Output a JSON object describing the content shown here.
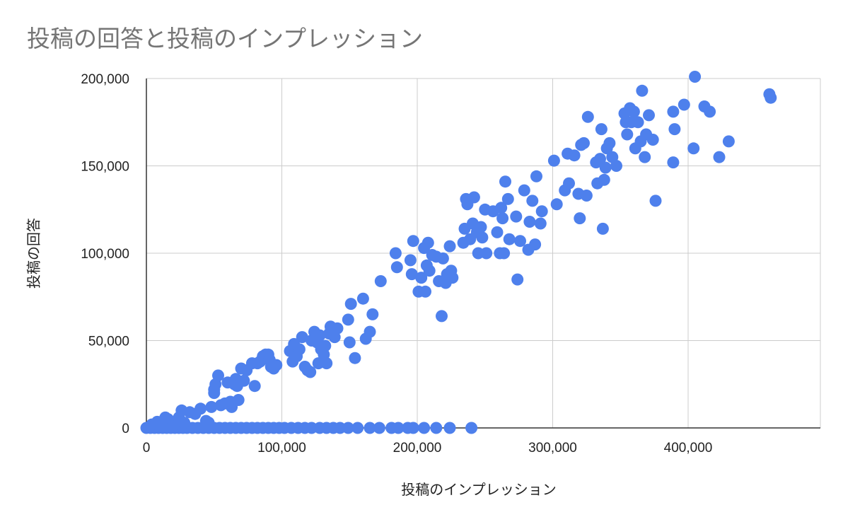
{
  "chart_data": {
    "type": "scatter",
    "title": "投稿の回答と投稿のインプレッション",
    "xlabel": "投稿のインプレッション",
    "ylabel": "投稿の回答",
    "xlim": [
      0,
      500000
    ],
    "ylim": [
      0,
      200000
    ],
    "x_ticks": [
      "0",
      "100,000",
      "200,000",
      "300,000",
      "400,000"
    ],
    "y_ticks": [
      "0",
      "50,000",
      "100,000",
      "150,000",
      "200,000"
    ],
    "grid": true,
    "legend": "none",
    "color": "#4e80ec",
    "points": [
      [
        0,
        0
      ],
      [
        3000,
        0
      ],
      [
        6000,
        0
      ],
      [
        9000,
        0
      ],
      [
        12000,
        0
      ],
      [
        15000,
        0
      ],
      [
        18000,
        0
      ],
      [
        21000,
        0
      ],
      [
        24000,
        0
      ],
      [
        27000,
        0
      ],
      [
        30000,
        0
      ],
      [
        34000,
        0
      ],
      [
        38000,
        0
      ],
      [
        42000,
        0
      ],
      [
        46000,
        0
      ],
      [
        50000,
        0
      ],
      [
        54000,
        0
      ],
      [
        58000,
        0
      ],
      [
        62000,
        0
      ],
      [
        66000,
        0
      ],
      [
        70000,
        0
      ],
      [
        74000,
        0
      ],
      [
        78000,
        0
      ],
      [
        82000,
        0
      ],
      [
        86000,
        0
      ],
      [
        90000,
        0
      ],
      [
        94000,
        0
      ],
      [
        98000,
        0
      ],
      [
        102000,
        0
      ],
      [
        107000,
        0
      ],
      [
        112000,
        0
      ],
      [
        117000,
        0
      ],
      [
        122000,
        0
      ],
      [
        128000,
        0
      ],
      [
        133000,
        0
      ],
      [
        138000,
        0
      ],
      [
        143000,
        0
      ],
      [
        149000,
        0
      ],
      [
        156000,
        0
      ],
      [
        165000,
        0
      ],
      [
        172000,
        0
      ],
      [
        181000,
        0
      ],
      [
        186000,
        0
      ],
      [
        193000,
        0
      ],
      [
        197000,
        0
      ],
      [
        205000,
        0
      ],
      [
        214000,
        0
      ],
      [
        224000,
        0
      ],
      [
        240000,
        0
      ],
      [
        4000,
        2000
      ],
      [
        8000,
        3500
      ],
      [
        12000,
        1500
      ],
      [
        16000,
        5000
      ],
      [
        20000,
        2000
      ],
      [
        24000,
        6000
      ],
      [
        28000,
        3000
      ],
      [
        32000,
        9000
      ],
      [
        36000,
        8000
      ],
      [
        40000,
        11000
      ],
      [
        14000,
        6000
      ],
      [
        26000,
        10000
      ],
      [
        44000,
        4000
      ],
      [
        46000,
        3000
      ],
      [
        48000,
        12000
      ],
      [
        50000,
        22000
      ],
      [
        50000,
        20000
      ],
      [
        51000,
        25000
      ],
      [
        53000,
        30000
      ],
      [
        55000,
        13000
      ],
      [
        58000,
        14000
      ],
      [
        60000,
        26000
      ],
      [
        62000,
        15000
      ],
      [
        63000,
        12000
      ],
      [
        65000,
        25000
      ],
      [
        66000,
        28000
      ],
      [
        67000,
        24000
      ],
      [
        68000,
        16000
      ],
      [
        70000,
        34000
      ],
      [
        72000,
        27000
      ],
      [
        74000,
        33000
      ],
      [
        78000,
        37000
      ],
      [
        80000,
        24000
      ],
      [
        82000,
        37000
      ],
      [
        84000,
        38000
      ],
      [
        86000,
        41000
      ],
      [
        88000,
        42000
      ],
      [
        90000,
        42000
      ],
      [
        91000,
        39000
      ],
      [
        92000,
        35000
      ],
      [
        94000,
        34000
      ],
      [
        96000,
        36000
      ],
      [
        106000,
        44000
      ],
      [
        108000,
        38000
      ],
      [
        109000,
        48000
      ],
      [
        111000,
        41000
      ],
      [
        113000,
        45000
      ],
      [
        115000,
        52000
      ],
      [
        117000,
        35000
      ],
      [
        119000,
        33000
      ],
      [
        121000,
        32000
      ],
      [
        122000,
        50000
      ],
      [
        124000,
        55000
      ],
      [
        126000,
        49000
      ],
      [
        127000,
        37000
      ],
      [
        128000,
        53000
      ],
      [
        129000,
        45000
      ],
      [
        131000,
        42000
      ],
      [
        132000,
        47000
      ],
      [
        133000,
        37000
      ],
      [
        135000,
        54000
      ],
      [
        136000,
        58000
      ],
      [
        139000,
        52000
      ],
      [
        141000,
        57000
      ],
      [
        149000,
        62000
      ],
      [
        150000,
        49000
      ],
      [
        151000,
        71000
      ],
      [
        154000,
        40000
      ],
      [
        160000,
        74000
      ],
      [
        162000,
        51000
      ],
      [
        165000,
        55000
      ],
      [
        167000,
        65000
      ],
      [
        173000,
        84000
      ],
      [
        184000,
        100000
      ],
      [
        185000,
        92000
      ],
      [
        195000,
        96000
      ],
      [
        196000,
        88000
      ],
      [
        197000,
        107000
      ],
      [
        201000,
        78000
      ],
      [
        203000,
        86000
      ],
      [
        205000,
        103000
      ],
      [
        206000,
        78000
      ],
      [
        207000,
        93000
      ],
      [
        208000,
        106000
      ],
      [
        209000,
        90000
      ],
      [
        211000,
        99000
      ],
      [
        214000,
        98000
      ],
      [
        216000,
        84000
      ],
      [
        218000,
        64000
      ],
      [
        219000,
        97000
      ],
      [
        221000,
        83000
      ],
      [
        222000,
        88000
      ],
      [
        224000,
        104000
      ],
      [
        225000,
        90000
      ],
      [
        226000,
        86000
      ],
      [
        234000,
        106000
      ],
      [
        235000,
        114000
      ],
      [
        236000,
        131000
      ],
      [
        237000,
        128000
      ],
      [
        239000,
        108000
      ],
      [
        241000,
        117000
      ],
      [
        242000,
        132000
      ],
      [
        244000,
        112000
      ],
      [
        245000,
        100000
      ],
      [
        247000,
        115000
      ],
      [
        248000,
        109000
      ],
      [
        250000,
        125000
      ],
      [
        251000,
        100000
      ],
      [
        256000,
        124000
      ],
      [
        259000,
        112000
      ],
      [
        261000,
        100000
      ],
      [
        262000,
        126000
      ],
      [
        263000,
        120000
      ],
      [
        264000,
        100000
      ],
      [
        265000,
        141000
      ],
      [
        267000,
        131000
      ],
      [
        268000,
        108000
      ],
      [
        273000,
        121000
      ],
      [
        274000,
        85000
      ],
      [
        276000,
        107000
      ],
      [
        279000,
        136000
      ],
      [
        282000,
        102000
      ],
      [
        283000,
        118000
      ],
      [
        285000,
        130000
      ],
      [
        287000,
        105000
      ],
      [
        288000,
        144000
      ],
      [
        291000,
        117000
      ],
      [
        292000,
        124000
      ],
      [
        301000,
        153000
      ],
      [
        303000,
        128000
      ],
      [
        309000,
        136000
      ],
      [
        311000,
        157000
      ],
      [
        312000,
        140000
      ],
      [
        316000,
        156000
      ],
      [
        319000,
        134000
      ],
      [
        320000,
        120000
      ],
      [
        321000,
        162000
      ],
      [
        323000,
        163000
      ],
      [
        325000,
        133000
      ],
      [
        326000,
        178000
      ],
      [
        332000,
        152000
      ],
      [
        333000,
        140000
      ],
      [
        335000,
        154000
      ],
      [
        336000,
        171000
      ],
      [
        337000,
        114000
      ],
      [
        338000,
        142000
      ],
      [
        339000,
        149000
      ],
      [
        340000,
        160000
      ],
      [
        342000,
        163000
      ],
      [
        344000,
        155000
      ],
      [
        347000,
        150000
      ],
      [
        353000,
        180000
      ],
      [
        354000,
        175000
      ],
      [
        355000,
        168000
      ],
      [
        357000,
        183000
      ],
      [
        358000,
        175000
      ],
      [
        360000,
        181000
      ],
      [
        361000,
        160000
      ],
      [
        363000,
        175000
      ],
      [
        365000,
        164000
      ],
      [
        366000,
        193000
      ],
      [
        368000,
        155000
      ],
      [
        369000,
        168000
      ],
      [
        371000,
        179000
      ],
      [
        374000,
        165000
      ],
      [
        376000,
        130000
      ],
      [
        389000,
        181000
      ],
      [
        389000,
        152000
      ],
      [
        390000,
        171000
      ],
      [
        397000,
        185000
      ],
      [
        404000,
        160000
      ],
      [
        405000,
        201000
      ],
      [
        412000,
        184000
      ],
      [
        416000,
        181000
      ],
      [
        423000,
        155000
      ],
      [
        430000,
        164000
      ],
      [
        460000,
        191000
      ],
      [
        461000,
        189000
      ]
    ]
  }
}
